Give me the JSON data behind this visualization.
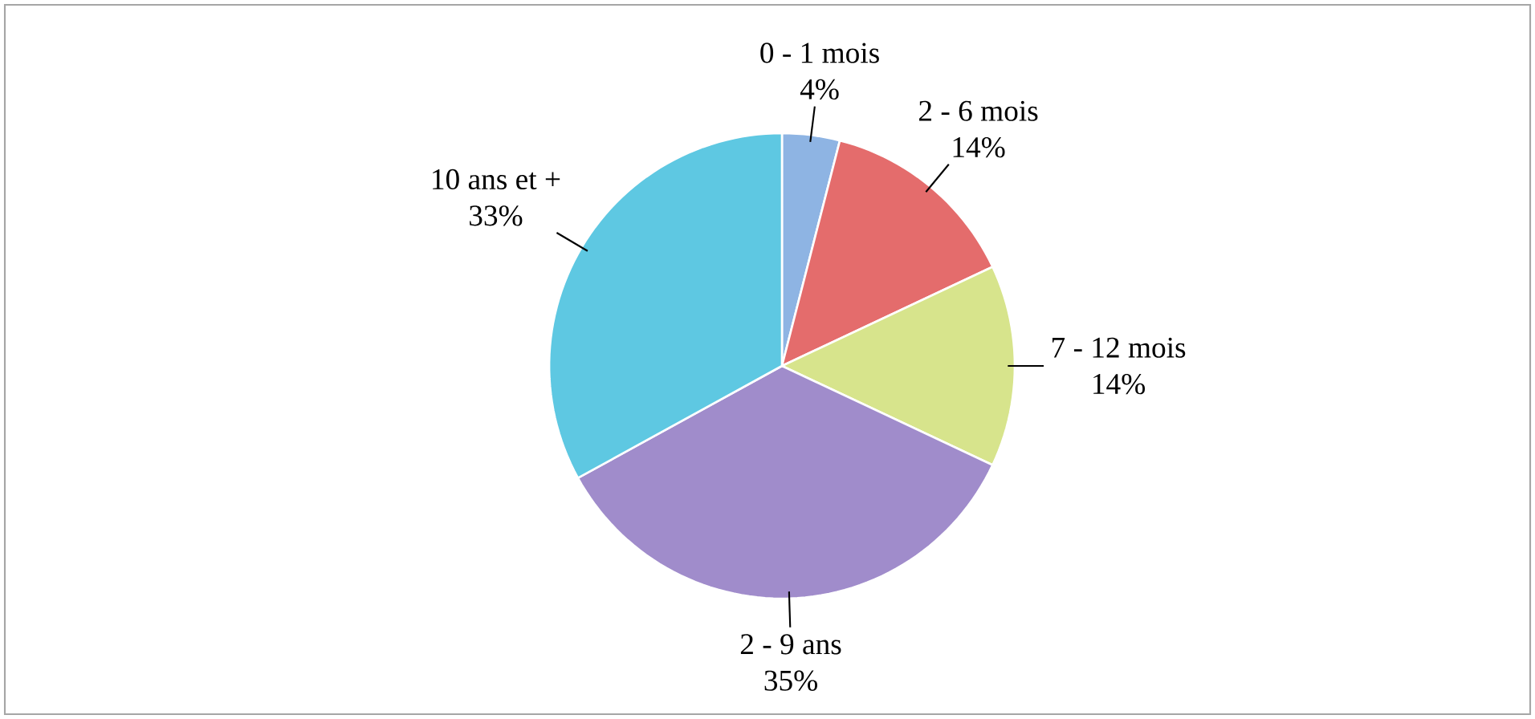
{
  "chart_data": {
    "type": "pie",
    "categories": [
      "0 - 1 mois",
      "2 - 6 mois",
      "7 - 12 mois",
      "2 - 9 ans",
      "10 ans et +"
    ],
    "values": [
      4,
      14,
      14,
      35,
      33
    ],
    "value_labels": [
      "4%",
      "14%",
      "14%",
      "35%",
      "33%"
    ],
    "colors": [
      "#8eb4e3",
      "#e46c6c",
      "#d7e48c",
      "#a08ccb",
      "#5ec8e2"
    ]
  }
}
